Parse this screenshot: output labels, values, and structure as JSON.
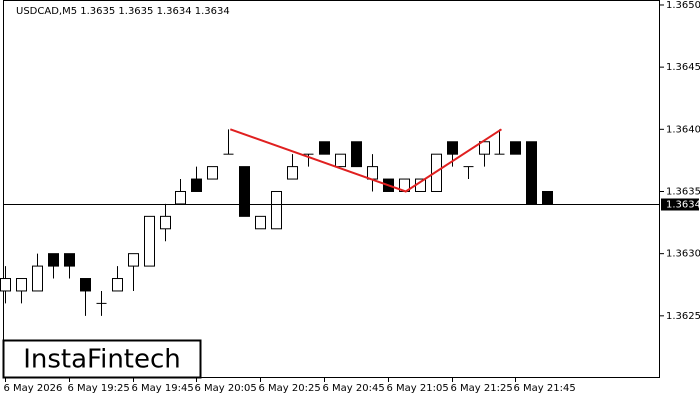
{
  "chart_data": {
    "type": "candlestick",
    "title": "USDCAD,M5  1.3635 1.3635 1.3634 1.3634",
    "watermark": "InstaFintech",
    "categories": [
      "6 May 2026",
      null,
      null,
      null,
      "6 May 19:25",
      null,
      null,
      null,
      "6 May 19:45",
      null,
      null,
      null,
      "6 May 20:05",
      null,
      null,
      null,
      "6 May 20:25",
      null,
      null,
      null,
      "6 May 20:45",
      null,
      null,
      null,
      "6 May 21:05",
      null,
      null,
      null,
      "6 May 21:25",
      null,
      null,
      null,
      "6 May 21:45",
      null,
      null
    ],
    "open": [
      1.3627,
      1.3627,
      1.3627,
      1.363,
      1.363,
      1.3628,
      1.3626,
      1.3627,
      1.3629,
      1.3629,
      1.3632,
      1.3634,
      1.3636,
      1.3636,
      1.3638,
      1.3637,
      1.3632,
      1.3632,
      1.3636,
      1.3638,
      1.3639,
      1.3637,
      1.3639,
      1.3636,
      1.3636,
      1.3635,
      1.3635,
      1.3635,
      1.3639,
      1.3637,
      1.3638,
      1.3638,
      1.3639,
      1.3639,
      1.3635
    ],
    "high": [
      1.3629,
      1.3628,
      1.363,
      1.363,
      1.363,
      1.3628,
      1.3627,
      1.3629,
      1.363,
      1.3633,
      1.3634,
      1.3636,
      1.3637,
      1.3637,
      1.364,
      1.3637,
      1.3633,
      1.3635,
      1.3638,
      1.3638,
      1.3639,
      1.3638,
      1.3639,
      1.3638,
      1.3636,
      1.3636,
      1.3636,
      1.3638,
      1.3639,
      1.3637,
      1.3639,
      1.364,
      1.3639,
      1.3639,
      1.3635
    ],
    "low": [
      1.3626,
      1.3626,
      1.3627,
      1.3628,
      1.3628,
      1.3625,
      1.3625,
      1.3627,
      1.3627,
      1.3629,
      1.3631,
      1.3634,
      1.3635,
      1.3636,
      1.3638,
      1.3633,
      1.3632,
      1.3632,
      1.3636,
      1.3637,
      1.3638,
      1.3637,
      1.3637,
      1.3635,
      1.3635,
      1.3635,
      1.3635,
      1.3635,
      1.3637,
      1.3636,
      1.3637,
      1.3638,
      1.3638,
      1.3634,
      1.3634
    ],
    "close": [
      1.3628,
      1.3628,
      1.3629,
      1.3629,
      1.3629,
      1.3627,
      1.3626,
      1.3628,
      1.363,
      1.3633,
      1.3633,
      1.3635,
      1.3635,
      1.3637,
      1.3638,
      1.3633,
      1.3633,
      1.3635,
      1.3637,
      1.3638,
      1.3638,
      1.3638,
      1.3637,
      1.3637,
      1.3635,
      1.3636,
      1.3636,
      1.3638,
      1.3638,
      1.3637,
      1.3639,
      1.3638,
      1.3638,
      1.3634,
      1.3634
    ],
    "up_color": "#ffffff",
    "down_color": "#000000",
    "pattern_line": {
      "color": "#e02020",
      "x_index": [
        14,
        25,
        31
      ],
      "values": [
        1.364,
        1.3635,
        1.364
      ]
    },
    "last_price": 1.3634,
    "ylim": [
      1.362,
      1.36504
    ],
    "yticks": [
      1.3625,
      {
        "value": 1.363,
        "label": "1.3630"
      },
      1.3635,
      {
        "value": 1.364,
        "label": "1.3640"
      },
      1.3645,
      {
        "value": 1.365,
        "label": "1.3650"
      }
    ]
  }
}
